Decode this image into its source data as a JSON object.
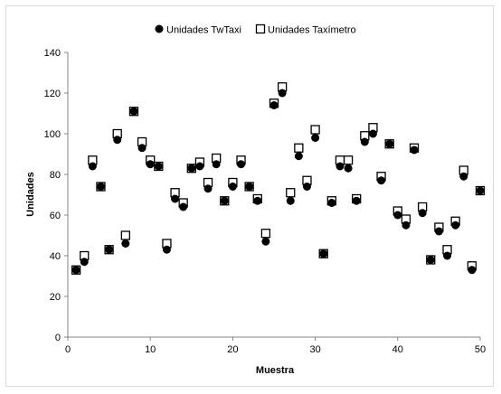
{
  "chart_data": {
    "type": "scatter",
    "title": "",
    "xlabel": "Muestra",
    "ylabel": "Unidades",
    "xlim": [
      0,
      50
    ],
    "ylim": [
      0,
      140
    ],
    "x_ticks": [
      0,
      10,
      20,
      30,
      40,
      50
    ],
    "y_ticks": [
      0,
      20,
      40,
      60,
      80,
      100,
      120,
      140
    ],
    "grid": false,
    "legend_position": "top",
    "series": [
      {
        "name": "Unidades TwTaxi",
        "marker": "filled-circle",
        "color": "#000000",
        "x": [
          1,
          2,
          3,
          4,
          5,
          6,
          7,
          8,
          9,
          10,
          11,
          12,
          13,
          14,
          15,
          16,
          17,
          18,
          19,
          20,
          21,
          22,
          23,
          24,
          25,
          26,
          27,
          28,
          29,
          30,
          31,
          32,
          33,
          34,
          35,
          36,
          37,
          38,
          39,
          40,
          41,
          42,
          43,
          44,
          45,
          46,
          47,
          48,
          49,
          50
        ],
        "y": [
          33,
          37,
          84,
          74,
          43,
          97,
          46,
          111,
          93,
          85,
          84,
          43,
          68,
          64,
          83,
          84,
          73,
          85,
          67,
          74,
          85,
          74,
          67,
          47,
          114,
          120,
          67,
          89,
          74,
          98,
          41,
          66,
          84,
          83,
          67,
          96,
          100,
          77,
          95,
          60,
          55,
          92,
          61,
          38,
          52,
          40,
          55,
          79,
          33,
          72
        ]
      },
      {
        "name": "Unidades Taxímetro",
        "marker": "hollow-square",
        "color": "#000000",
        "x": [
          1,
          2,
          3,
          4,
          5,
          6,
          7,
          8,
          9,
          10,
          11,
          12,
          13,
          14,
          15,
          16,
          17,
          18,
          19,
          20,
          21,
          22,
          23,
          24,
          25,
          26,
          27,
          28,
          29,
          30,
          31,
          32,
          33,
          34,
          35,
          36,
          37,
          38,
          39,
          40,
          41,
          42,
          43,
          44,
          45,
          46,
          47,
          48,
          49,
          50
        ],
        "y": [
          33,
          40,
          87,
          74,
          43,
          100,
          50,
          111,
          96,
          87,
          84,
          46,
          71,
          66,
          83,
          86,
          76,
          88,
          67,
          76,
          87,
          74,
          68,
          51,
          115,
          123,
          71,
          93,
          77,
          102,
          41,
          67,
          87,
          87,
          68,
          99,
          103,
          79,
          95,
          62,
          58,
          93,
          64,
          38,
          54,
          43,
          57,
          82,
          35,
          72
        ]
      }
    ]
  }
}
